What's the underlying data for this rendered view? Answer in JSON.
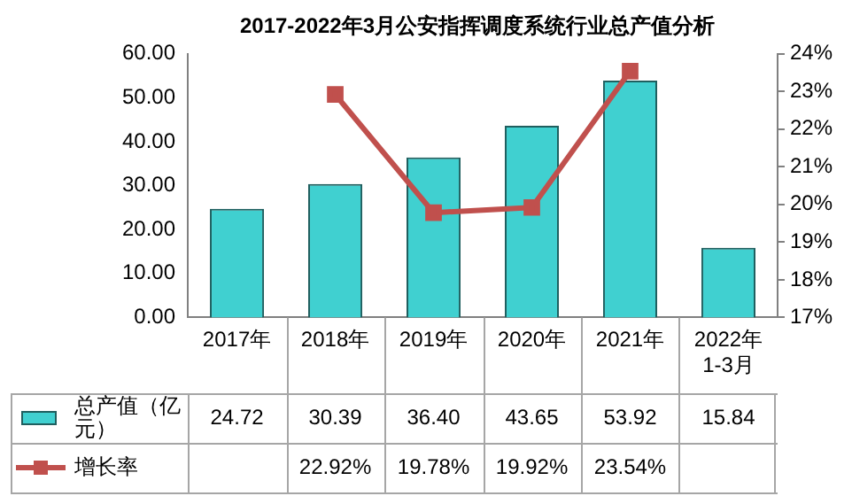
{
  "chart_data": {
    "type": "bar",
    "title": "2017-2022年3月公安指挥调度系统行业总产值分析",
    "categories": [
      "2017年",
      "2018年",
      "2019年",
      "2020年",
      "2021年",
      "2022年\n1-3月"
    ],
    "series": [
      {
        "name": "总产值（亿元）",
        "color": "#40d0d0",
        "values": [
          24.72,
          30.39,
          36.4,
          43.65,
          53.92,
          15.84
        ],
        "value_labels": [
          "24.72",
          "30.39",
          "36.40",
          "43.65",
          "53.92",
          "15.84"
        ]
      },
      {
        "name": "增长率",
        "type": "line",
        "axis": "y2",
        "color": "#c0504d",
        "values": [
          null,
          22.92,
          19.78,
          19.92,
          23.54,
          null
        ],
        "value_labels": [
          null,
          "22.92%",
          "19.78%",
          "19.92%",
          "23.54%",
          null
        ]
      }
    ],
    "ylim": [
      0,
      60
    ],
    "yticks": [
      {
        "value": 0,
        "label": "0.00"
      },
      {
        "value": 10,
        "label": "10.00"
      },
      {
        "value": 20,
        "label": "20.00"
      },
      {
        "value": 30,
        "label": "30.00"
      },
      {
        "value": 40,
        "label": "40.00"
      },
      {
        "value": 50,
        "label": "50.00"
      },
      {
        "value": 60,
        "label": "60.00"
      }
    ],
    "y2lim": [
      17,
      24
    ],
    "y2ticks": [
      {
        "value": 17,
        "label": "17%"
      },
      {
        "value": 18,
        "label": "18%"
      },
      {
        "value": 19,
        "label": "19%"
      },
      {
        "value": 20,
        "label": "20%"
      },
      {
        "value": 21,
        "label": "21%"
      },
      {
        "value": 22,
        "label": "22%"
      },
      {
        "value": 23,
        "label": "23%"
      },
      {
        "value": 24,
        "label": "24%"
      }
    ],
    "grid": false,
    "legend": "bottom left",
    "marker": "square",
    "line_style": "solid"
  }
}
